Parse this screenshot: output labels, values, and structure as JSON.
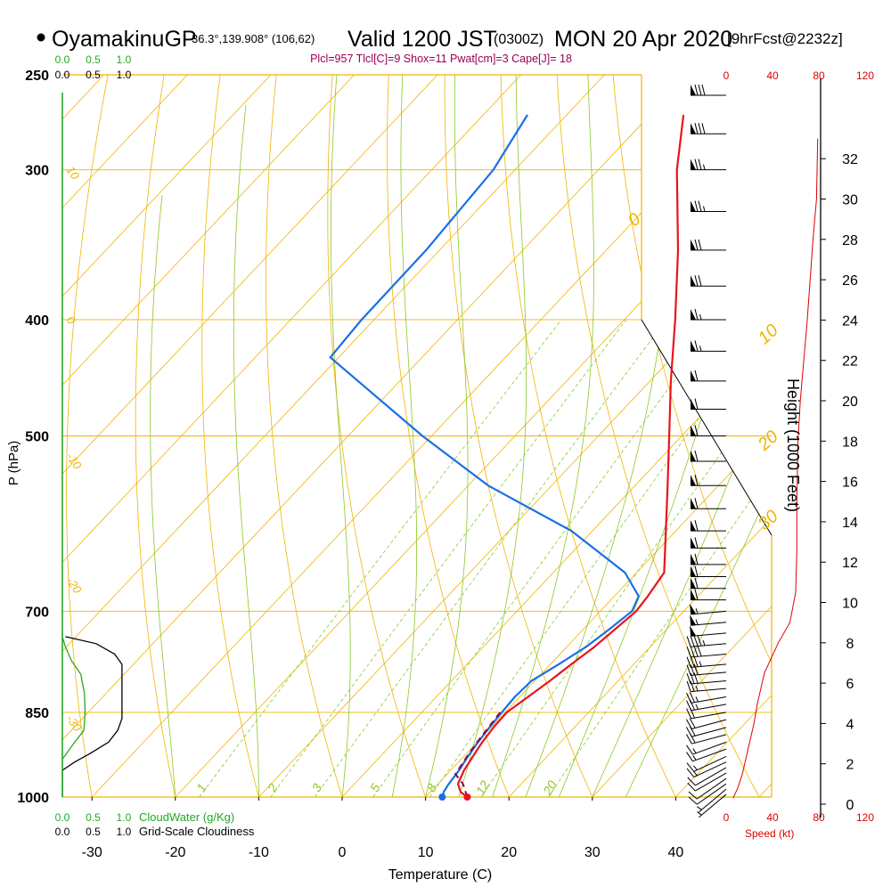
{
  "header": {
    "station": "OyamakinuGP",
    "location": "36.3°,139.908° (106,62)",
    "valid": "Valid 1200 JST",
    "utc": "(0300Z)",
    "date": "MON 20 Apr 2020",
    "forecast": "[9hrFcst@2232z]",
    "indices": "Plcl=957 Tlcl[C]=9 Shox=11 Pwat[cm]=3 Cape[J]= 18"
  },
  "axes": {
    "x_label": "Temperature (C)",
    "y_label": "P (hPa)",
    "height_label": "Height (1000 Feet)",
    "cloudwater_label": "CloudWater (g/Kg)",
    "cloudiness_label": "Grid-Scale Cloudiness",
    "speed_label": "Speed (kt)"
  },
  "colors": {
    "temperature": "#e8141c",
    "dewpoint": "#1a6ee8",
    "parcel": "#8b0a3c",
    "isotherm": "#f0b400",
    "mixing_ratio": "#8cc828",
    "cloudwater": "#22aa22",
    "wind_speed": "#dd0000",
    "indices_text": "#990055"
  },
  "chart_data": {
    "type": "line",
    "x_range": [
      -35,
      50
    ],
    "p_range": [
      1000,
      250
    ],
    "pressure_ticks": [
      {
        "p": 250,
        "label": "250"
      },
      {
        "p": 300,
        "label": "300"
      },
      {
        "p": 400,
        "label": "400"
      },
      {
        "p": 500,
        "label": "500"
      },
      {
        "p": 700,
        "label": "700"
      },
      {
        "p": 850,
        "label": "850"
      },
      {
        "p": 1000,
        "label": "1000"
      }
    ],
    "temperature_ticks": [
      {
        "t": -30,
        "label": "-30"
      },
      {
        "t": -20,
        "label": "-20"
      },
      {
        "t": -10,
        "label": "-10"
      },
      {
        "t": 0,
        "label": "0"
      },
      {
        "t": 10,
        "label": "10"
      },
      {
        "t": 20,
        "label": "20"
      },
      {
        "t": 30,
        "label": "30"
      },
      {
        "t": 40,
        "label": "40"
      }
    ],
    "height_ticks": [
      {
        "h": 0,
        "label": "0"
      },
      {
        "h": 2,
        "label": "2"
      },
      {
        "h": 4,
        "label": "4"
      },
      {
        "h": 6,
        "label": "6"
      },
      {
        "h": 8,
        "label": "8"
      },
      {
        "h": 10,
        "label": "10"
      },
      {
        "h": 12,
        "label": "12"
      },
      {
        "h": 14,
        "label": "14"
      },
      {
        "h": 16,
        "label": "16"
      },
      {
        "h": 18,
        "label": "18"
      },
      {
        "h": 20,
        "label": "20"
      },
      {
        "h": 22,
        "label": "22"
      },
      {
        "h": 24,
        "label": "24"
      },
      {
        "h": 26,
        "label": "26"
      },
      {
        "h": 28,
        "label": "28"
      },
      {
        "h": 30,
        "label": "30"
      },
      {
        "h": 32,
        "label": "32"
      }
    ],
    "isotherm_labels": [
      {
        "t": 0,
        "label": "0"
      },
      {
        "t": 10,
        "label": "10"
      },
      {
        "t": 20,
        "label": "20"
      },
      {
        "t": 30,
        "label": "30"
      }
    ],
    "dry_adiabat_labels": [
      {
        "p": 300,
        "label": "10"
      },
      {
        "p": 400,
        "label": "0"
      },
      {
        "p": 520,
        "label": "-10"
      },
      {
        "p": 660,
        "label": "-20"
      },
      {
        "p": 860,
        "label": "-30"
      }
    ],
    "mixing_ratio_labels": [
      {
        "w": 1,
        "label": "1"
      },
      {
        "w": 2,
        "label": "2"
      },
      {
        "w": 3,
        "label": "3"
      },
      {
        "w": 5,
        "label": "5"
      },
      {
        "w": 8,
        "label": "8"
      },
      {
        "w": 12,
        "label": "12"
      },
      {
        "w": 20,
        "label": "20"
      }
    ],
    "mixing_ratios": [
      1,
      2,
      3,
      5,
      8,
      12,
      20
    ],
    "temperature_profile": [
      {
        "p": 1000,
        "t": 15.0
      },
      {
        "p": 990,
        "t": 13.6
      },
      {
        "p": 975,
        "t": 12.4
      },
      {
        "p": 950,
        "t": 11.6
      },
      {
        "p": 925,
        "t": 11.1
      },
      {
        "p": 900,
        "t": 10.6
      },
      {
        "p": 875,
        "t": 10.3
      },
      {
        "p": 850,
        "t": 10.2
      },
      {
        "p": 825,
        "t": 11.0
      },
      {
        "p": 800,
        "t": 11.8
      },
      {
        "p": 775,
        "t": 12.5
      },
      {
        "p": 750,
        "t": 13.3
      },
      {
        "p": 725,
        "t": 13.8
      },
      {
        "p": 700,
        "t": 14.3
      },
      {
        "p": 680,
        "t": 14.0
      },
      {
        "p": 650,
        "t": 13.3
      },
      {
        "p": 600,
        "t": 8.8
      },
      {
        "p": 550,
        "t": 3.9
      },
      {
        "p": 500,
        "t": -1.5
      },
      {
        "p": 450,
        "t": -7.5
      },
      {
        "p": 400,
        "t": -13.9
      },
      {
        "p": 350,
        "t": -21.4
      },
      {
        "p": 300,
        "t": -30.6
      },
      {
        "p": 270,
        "t": -36.0
      }
    ],
    "dewpoint_profile": [
      {
        "p": 1000,
        "t": 12.0
      },
      {
        "p": 990,
        "t": 11.6
      },
      {
        "p": 975,
        "t": 11.3
      },
      {
        "p": 950,
        "t": 11.0
      },
      {
        "p": 925,
        "t": 10.5
      },
      {
        "p": 900,
        "t": 10.1
      },
      {
        "p": 875,
        "t": 9.8
      },
      {
        "p": 850,
        "t": 9.6
      },
      {
        "p": 825,
        "t": 9.4
      },
      {
        "p": 800,
        "t": 9.6
      },
      {
        "p": 775,
        "t": 11.0
      },
      {
        "p": 750,
        "t": 12.3
      },
      {
        "p": 725,
        "t": 13.1
      },
      {
        "p": 700,
        "t": 13.8
      },
      {
        "p": 680,
        "t": 12.9
      },
      {
        "p": 650,
        "t": 8.6
      },
      {
        "p": 600,
        "t": -2.5
      },
      {
        "p": 550,
        "t": -17.6
      },
      {
        "p": 500,
        "t": -31.1
      },
      {
        "p": 450,
        "t": -45.0
      },
      {
        "p": 430,
        "t": -51.0
      },
      {
        "p": 400,
        "t": -51.5
      },
      {
        "p": 350,
        "t": -51.6
      },
      {
        "p": 300,
        "t": -52.6
      },
      {
        "p": 270,
        "t": -54.7
      }
    ],
    "parcel_profile": [
      {
        "p": 1000,
        "t": 15.0
      },
      {
        "p": 975,
        "t": 13.0
      },
      {
        "p": 957,
        "t": 11.0
      },
      {
        "p": 925,
        "t": 10.4
      },
      {
        "p": 900,
        "t": 10.0
      },
      {
        "p": 875,
        "t": 9.7
      },
      {
        "p": 850,
        "t": 9.4
      }
    ],
    "cloud_water_profile": [
      {
        "p": 1000,
        "v": 0.0
      },
      {
        "p": 930,
        "v": 0.0
      },
      {
        "p": 900,
        "v": 0.2
      },
      {
        "p": 880,
        "v": 0.35
      },
      {
        "p": 850,
        "v": 0.37
      },
      {
        "p": 820,
        "v": 0.36
      },
      {
        "p": 790,
        "v": 0.3
      },
      {
        "p": 770,
        "v": 0.15
      },
      {
        "p": 750,
        "v": 0.05
      },
      {
        "p": 735,
        "v": 0.0
      }
    ],
    "cloudiness_profile": [
      {
        "p": 1000,
        "v": 0.0
      },
      {
        "p": 950,
        "v": 0.0
      },
      {
        "p": 935,
        "v": 0.2
      },
      {
        "p": 920,
        "v": 0.45
      },
      {
        "p": 900,
        "v": 0.75
      },
      {
        "p": 880,
        "v": 0.9
      },
      {
        "p": 860,
        "v": 0.97
      },
      {
        "p": 800,
        "v": 0.97
      },
      {
        "p": 775,
        "v": 0.97
      },
      {
        "p": 760,
        "v": 0.85
      },
      {
        "p": 745,
        "v": 0.55
      },
      {
        "p": 735,
        "v": 0.05
      }
    ],
    "cloud_scale_labels": [
      {
        "v": 0.0,
        "label": "0.0"
      },
      {
        "v": 0.5,
        "label": "0.5"
      },
      {
        "v": 1.0,
        "label": "1.0"
      }
    ],
    "wind_speed_ticks": [
      {
        "s": 0,
        "label": "0"
      },
      {
        "s": 40,
        "label": "40"
      },
      {
        "s": 80,
        "label": "80"
      },
      {
        "s": 120,
        "label": "120"
      }
    ],
    "wind_speed_profile": [
      {
        "h": 0.3,
        "s": 6
      },
      {
        "h": 0.8,
        "s": 10
      },
      {
        "h": 1.5,
        "s": 14
      },
      {
        "h": 2.5,
        "s": 18
      },
      {
        "h": 4.0,
        "s": 24
      },
      {
        "h": 5.0,
        "s": 27
      },
      {
        "h": 6.5,
        "s": 33
      },
      {
        "h": 8.0,
        "s": 45
      },
      {
        "h": 9.0,
        "s": 55
      },
      {
        "h": 10.5,
        "s": 60
      },
      {
        "h": 12.5,
        "s": 61
      },
      {
        "h": 15.0,
        "s": 61
      },
      {
        "h": 18.0,
        "s": 62
      },
      {
        "h": 20.0,
        "s": 64
      },
      {
        "h": 24.0,
        "s": 70
      },
      {
        "h": 28.0,
        "s": 75
      },
      {
        "h": 30.0,
        "s": 78
      },
      {
        "h": 33.0,
        "s": 79
      }
    ],
    "wind_barbs": [
      {
        "p": 995,
        "dir": 230,
        "kt": 5
      },
      {
        "p": 985,
        "dir": 230,
        "kt": 5
      },
      {
        "p": 975,
        "dir": 235,
        "kt": 10
      },
      {
        "p": 965,
        "dir": 235,
        "kt": 10
      },
      {
        "p": 955,
        "dir": 240,
        "kt": 10
      },
      {
        "p": 945,
        "dir": 240,
        "kt": 10
      },
      {
        "p": 935,
        "dir": 245,
        "kt": 15
      },
      {
        "p": 925,
        "dir": 245,
        "kt": 15
      },
      {
        "p": 912,
        "dir": 250,
        "kt": 15
      },
      {
        "p": 900,
        "dir": 250,
        "kt": 15
      },
      {
        "p": 887,
        "dir": 255,
        "kt": 20
      },
      {
        "p": 875,
        "dir": 255,
        "kt": 20
      },
      {
        "p": 862,
        "dir": 255,
        "kt": 20
      },
      {
        "p": 850,
        "dir": 260,
        "kt": 20
      },
      {
        "p": 837,
        "dir": 260,
        "kt": 25
      },
      {
        "p": 825,
        "dir": 260,
        "kt": 25
      },
      {
        "p": 812,
        "dir": 265,
        "kt": 25
      },
      {
        "p": 800,
        "dir": 265,
        "kt": 30
      },
      {
        "p": 787,
        "dir": 265,
        "kt": 30
      },
      {
        "p": 775,
        "dir": 265,
        "kt": 35
      },
      {
        "p": 760,
        "dir": 265,
        "kt": 40
      },
      {
        "p": 745,
        "dir": 265,
        "kt": 45
      },
      {
        "p": 730,
        "dir": 265,
        "kt": 50
      },
      {
        "p": 715,
        "dir": 265,
        "kt": 55
      },
      {
        "p": 700,
        "dir": 265,
        "kt": 55
      },
      {
        "p": 685,
        "dir": 270,
        "kt": 60
      },
      {
        "p": 670,
        "dir": 270,
        "kt": 60
      },
      {
        "p": 655,
        "dir": 270,
        "kt": 60
      },
      {
        "p": 640,
        "dir": 270,
        "kt": 60
      },
      {
        "p": 620,
        "dir": 270,
        "kt": 60
      },
      {
        "p": 600,
        "dir": 270,
        "kt": 60
      },
      {
        "p": 575,
        "dir": 270,
        "kt": 60
      },
      {
        "p": 550,
        "dir": 270,
        "kt": 60
      },
      {
        "p": 525,
        "dir": 270,
        "kt": 60
      },
      {
        "p": 500,
        "dir": 270,
        "kt": 60
      },
      {
        "p": 475,
        "dir": 270,
        "kt": 60
      },
      {
        "p": 450,
        "dir": 270,
        "kt": 60
      },
      {
        "p": 425,
        "dir": 270,
        "kt": 65
      },
      {
        "p": 400,
        "dir": 270,
        "kt": 65
      },
      {
        "p": 375,
        "dir": 270,
        "kt": 70
      },
      {
        "p": 350,
        "dir": 270,
        "kt": 70
      },
      {
        "p": 325,
        "dir": 270,
        "kt": 75
      },
      {
        "p": 300,
        "dir": 270,
        "kt": 75
      },
      {
        "p": 280,
        "dir": 270,
        "kt": 80
      },
      {
        "p": 260,
        "dir": 270,
        "kt": 80
      }
    ]
  }
}
